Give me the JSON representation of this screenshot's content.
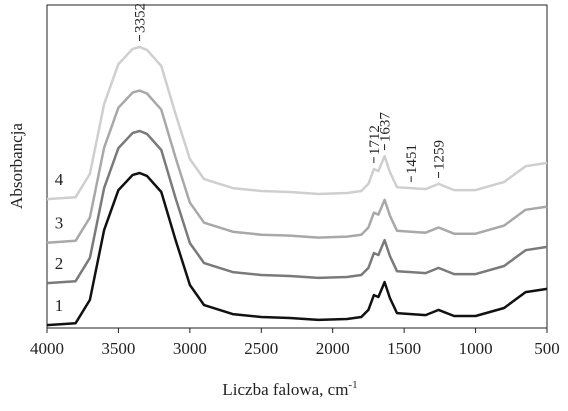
{
  "chart_data": {
    "type": "line",
    "x_label": "Liczba falowa, cm",
    "x_label_superscript": "-1",
    "y_label": "Absorbancja",
    "x": [
      4000,
      3800,
      3700,
      3600,
      3500,
      3400,
      3352,
      3300,
      3200,
      3100,
      3000,
      2900,
      2700,
      2500,
      2300,
      2100,
      1900,
      1800,
      1750,
      1712,
      1680,
      1637,
      1600,
      1550,
      1451,
      1350,
      1259,
      1150,
      1000,
      800,
      650,
      500
    ],
    "series": [
      {
        "name": "1",
        "color": "#111111",
        "values": [
          0.9,
          1.5,
          8.7,
          30.3,
          42.7,
          47.4,
          48.0,
          47.1,
          42.1,
          27.2,
          13.3,
          7.1,
          4.3,
          3.4,
          3.1,
          2.5,
          2.8,
          3.4,
          5.6,
          10.2,
          9.6,
          14.2,
          9.3,
          4.6,
          4.3,
          4.0,
          5.6,
          3.7,
          3.7,
          6.2,
          11.1,
          12.1
        ]
      },
      {
        "name": "2",
        "color": "#7a7a7a",
        "values": [
          13.9,
          14.5,
          21.7,
          43.3,
          55.7,
          60.4,
          61.0,
          60.1,
          55.1,
          40.2,
          26.3,
          20.1,
          17.3,
          16.4,
          16.1,
          15.5,
          15.8,
          16.4,
          18.6,
          23.2,
          22.6,
          27.2,
          22.3,
          17.6,
          17.3,
          17.0,
          18.6,
          16.7,
          16.7,
          19.2,
          24.1,
          25.1
        ]
      },
      {
        "name": "3",
        "color": "#a8a8a8",
        "values": [
          26.4,
          27.0,
          34.2,
          55.8,
          68.2,
          72.9,
          73.5,
          72.6,
          67.6,
          52.7,
          38.8,
          32.6,
          29.8,
          28.9,
          28.6,
          28.0,
          28.3,
          28.9,
          31.1,
          35.7,
          35.1,
          39.7,
          34.8,
          30.1,
          29.8,
          29.5,
          31.1,
          29.2,
          29.2,
          31.7,
          36.6,
          37.6
        ]
      },
      {
        "name": "4",
        "color": "#cfcfcf",
        "values": [
          39.9,
          40.5,
          47.7,
          69.3,
          81.7,
          86.4,
          87.0,
          86.1,
          81.1,
          66.2,
          52.3,
          46.1,
          43.3,
          42.4,
          42.1,
          41.5,
          41.8,
          42.4,
          44.6,
          49.2,
          48.6,
          53.2,
          48.3,
          43.6,
          43.3,
          43.0,
          44.6,
          42.7,
          42.7,
          45.2,
          50.1,
          51.1
        ]
      }
    ],
    "peak_labels": [
      3352,
      1712,
      1637,
      1451,
      1259
    ],
    "xlim": [
      4000,
      500
    ],
    "xticks": [
      4000,
      3500,
      3000,
      2500,
      2000,
      1500,
      1000,
      500
    ],
    "ylim": [
      0,
      100
    ]
  }
}
